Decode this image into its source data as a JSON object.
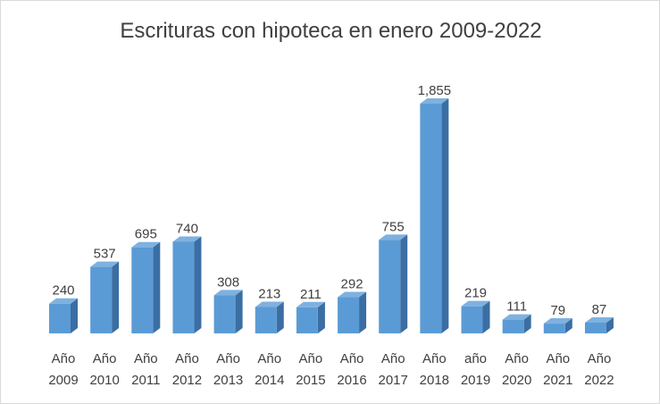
{
  "chart_data": {
    "type": "bar",
    "title": "Escrituras con hipoteca en enero 2009-2022",
    "categories": [
      [
        "Año",
        "2009"
      ],
      [
        "Año",
        "2010"
      ],
      [
        "Año",
        "2011"
      ],
      [
        "Año",
        "2012"
      ],
      [
        "Año",
        "2013"
      ],
      [
        "Año",
        "2014"
      ],
      [
        "Año",
        "2015"
      ],
      [
        "Año",
        "2016"
      ],
      [
        "Año",
        "2017"
      ],
      [
        "Año",
        "2018"
      ],
      [
        "año",
        "2019"
      ],
      [
        "Año",
        "2020"
      ],
      [
        "Año",
        "2021"
      ],
      [
        "Año",
        "2022"
      ]
    ],
    "values": [
      240,
      537,
      695,
      740,
      308,
      213,
      211,
      292,
      755,
      1855,
      219,
      111,
      79,
      87
    ],
    "value_labels": [
      "240",
      "537",
      "695",
      "740",
      "308",
      "213",
      "211",
      "292",
      "755",
      "1,855",
      "219",
      "111",
      "79",
      "87"
    ],
    "ylim": [
      0,
      1855
    ],
    "grid": false,
    "legend": "none",
    "bar_color": "#5b9bd5",
    "bar_side_color": "#3b6ea3",
    "bar_top_color": "#7fb1e0"
  }
}
